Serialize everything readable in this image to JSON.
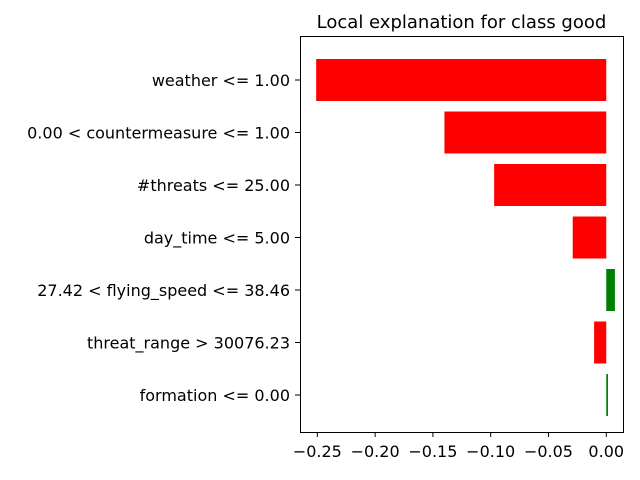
{
  "chart_data": {
    "type": "bar",
    "orientation": "horizontal",
    "title": "Local explanation for class good",
    "xlabel": "",
    "ylabel": "",
    "xlim": [
      -0.265,
      0.0145
    ],
    "grid": false,
    "legend": "none",
    "positive_color": "#008000",
    "negative_color": "#ff0000",
    "xticks": [
      {
        "value": -0.25,
        "label": "−0.25"
      },
      {
        "value": -0.2,
        "label": "−0.20"
      },
      {
        "value": -0.15,
        "label": "−0.15"
      },
      {
        "value": -0.1,
        "label": "−0.10"
      },
      {
        "value": -0.05,
        "label": "−0.05"
      },
      {
        "value": 0.0,
        "label": "0.00"
      }
    ],
    "categories": [
      "weather <= 1.00",
      "0.00 < countermeasure <= 1.00",
      "#threats <= 25.00",
      "day_time <= 5.00",
      "27.42 < flying_speed <= 38.46",
      "threat_range > 30076.23",
      "formation <= 0.00"
    ],
    "values": [
      -0.251,
      -0.14,
      -0.097,
      -0.029,
      0.0075,
      -0.0105,
      0.0015
    ]
  }
}
